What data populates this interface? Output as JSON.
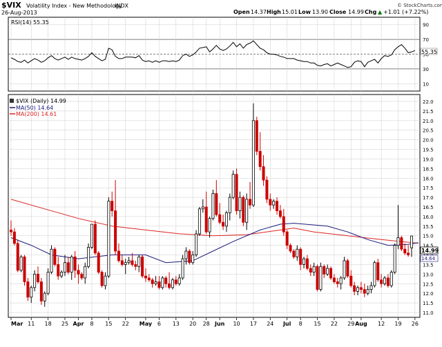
{
  "header": {
    "symbol": "$VIX",
    "name": "Volatility Index - New Methodology",
    "exchange": "INDX",
    "date": "26-Aug-2013",
    "open_label": "Open",
    "open": "14.37",
    "high_label": "High",
    "high": "15.01",
    "low_label": "Low",
    "low": "13.90",
    "close_label": "Close",
    "close": "14.99",
    "chg_label": "Chg",
    "chg": "+1.01 (+7.22%)",
    "watermark": "© StockCharts.com",
    "up_arrow": "▲"
  },
  "rsi_panel": {
    "label": "RSI(14) 55.35",
    "last_value_label": "55.35",
    "ticks": [
      10,
      30,
      50,
      70,
      90
    ],
    "ref_lines": [
      30,
      50,
      70
    ],
    "ylim": [
      0,
      100
    ]
  },
  "price_panel": {
    "legend_title": "$VIX (Daily) 14.99",
    "legend_ma50": "MA(50) 14.64",
    "legend_ma200": "MA(200) 14.61",
    "price_tag": "14.99",
    "ma_tag": "14.64"
  },
  "colors": {
    "up": "#000000",
    "down": "#cc0000",
    "ma50": "#1a1a7a",
    "ma200": "#dd2222",
    "grid": "#cccccc",
    "rsi_line": "#000000"
  },
  "chart_data": {
    "type": "candlestick",
    "title": "$VIX Volatility Index - New Methodology INDX",
    "ylim": [
      11.0,
      22.0
    ],
    "yticks": [
      11.0,
      11.5,
      12.0,
      12.5,
      13.0,
      13.5,
      14.0,
      14.5,
      15.0,
      15.5,
      16.0,
      16.5,
      17.0,
      17.5,
      18.0,
      18.5,
      19.0,
      19.5,
      20.0,
      20.5,
      21.0,
      21.5,
      22.0
    ],
    "xtick_labels": [
      {
        "i": 0,
        "label": "Mar"
      },
      {
        "i": 6,
        "label": "11"
      },
      {
        "i": 11,
        "label": "18"
      },
      {
        "i": 16,
        "label": "25"
      },
      {
        "i": 20,
        "label": "Apr"
      },
      {
        "i": 24,
        "label": "8"
      },
      {
        "i": 29,
        "label": "15"
      },
      {
        "i": 34,
        "label": "22"
      },
      {
        "i": 40,
        "label": "May"
      },
      {
        "i": 44,
        "label": "6"
      },
      {
        "i": 49,
        "label": "13"
      },
      {
        "i": 54,
        "label": "20"
      },
      {
        "i": 58,
        "label": "28"
      },
      {
        "i": 62,
        "label": "Jun"
      },
      {
        "i": 67,
        "label": "10"
      },
      {
        "i": 72,
        "label": "17"
      },
      {
        "i": 77,
        "label": "24"
      },
      {
        "i": 82,
        "label": "Jul"
      },
      {
        "i": 86,
        "label": "8"
      },
      {
        "i": 91,
        "label": "15"
      },
      {
        "i": 96,
        "label": "22"
      },
      {
        "i": 101,
        "label": "29"
      },
      {
        "i": 104,
        "label": "Aug"
      },
      {
        "i": 110,
        "label": "12"
      },
      {
        "i": 115,
        "label": "19"
      },
      {
        "i": 120,
        "label": "26"
      }
    ],
    "ohlc": [
      [
        15.3,
        15.8,
        15.0,
        15.2
      ],
      [
        15.2,
        15.4,
        14.5,
        14.6
      ],
      [
        14.6,
        14.8,
        13.1,
        13.2
      ],
      [
        13.2,
        14.0,
        13.1,
        13.9
      ],
      [
        13.9,
        14.0,
        12.4,
        12.6
      ],
      [
        12.6,
        12.8,
        11.6,
        11.8
      ],
      [
        11.8,
        12.4,
        11.5,
        12.3
      ],
      [
        12.3,
        13.2,
        12.1,
        13.0
      ],
      [
        13.0,
        13.4,
        12.5,
        12.6
      ],
      [
        12.6,
        12.8,
        11.4,
        11.6
      ],
      [
        11.6,
        12.1,
        11.3,
        12.0
      ],
      [
        12.0,
        13.3,
        11.9,
        13.1
      ],
      [
        13.1,
        14.5,
        13.0,
        14.3
      ],
      [
        14.3,
        14.4,
        13.4,
        13.5
      ],
      [
        13.5,
        13.9,
        12.7,
        12.9
      ],
      [
        12.9,
        13.2,
        12.8,
        13.1
      ],
      [
        13.1,
        14.0,
        12.9,
        13.6
      ],
      [
        13.6,
        13.9,
        13.0,
        13.1
      ],
      [
        13.1,
        14.0,
        12.7,
        13.9
      ],
      [
        13.9,
        14.2,
        12.8,
        13.2
      ],
      [
        13.2,
        13.5,
        12.5,
        13.0
      ],
      [
        13.0,
        13.1,
        12.7,
        12.8
      ],
      [
        12.8,
        13.6,
        12.5,
        13.4
      ],
      [
        13.4,
        14.6,
        13.3,
        14.4
      ],
      [
        14.4,
        15.6,
        14.3,
        15.6
      ],
      [
        15.6,
        15.8,
        14.0,
        14.1
      ],
      [
        14.1,
        14.2,
        13.0,
        13.1
      ],
      [
        13.1,
        13.2,
        12.3,
        12.4
      ],
      [
        12.4,
        13.1,
        12.2,
        12.9
      ],
      [
        12.9,
        17.0,
        12.8,
        16.8
      ],
      [
        16.8,
        17.3,
        16.0,
        16.3
      ],
      [
        16.3,
        17.9,
        14.0,
        14.2
      ],
      [
        14.2,
        14.6,
        13.6,
        13.7
      ],
      [
        13.7,
        14.0,
        13.4,
        13.5
      ],
      [
        13.5,
        13.8,
        13.0,
        13.6
      ],
      [
        13.6,
        13.9,
        13.5,
        13.7
      ],
      [
        13.7,
        14.1,
        13.4,
        13.5
      ],
      [
        13.5,
        13.7,
        13.2,
        13.4
      ],
      [
        13.4,
        14.0,
        13.1,
        13.9
      ],
      [
        13.9,
        14.0,
        12.8,
        12.9
      ],
      [
        12.9,
        13.3,
        12.6,
        12.8
      ],
      [
        12.8,
        13.0,
        12.6,
        12.7
      ],
      [
        12.7,
        12.8,
        12.3,
        12.5
      ],
      [
        12.5,
        12.9,
        12.4,
        12.6
      ],
      [
        12.6,
        12.9,
        12.2,
        12.3
      ],
      [
        12.3,
        12.9,
        12.2,
        12.8
      ],
      [
        12.8,
        12.9,
        12.3,
        12.5
      ],
      [
        12.5,
        13.1,
        12.2,
        12.3
      ],
      [
        12.3,
        12.8,
        12.2,
        12.7
      ],
      [
        12.7,
        12.9,
        12.4,
        12.5
      ],
      [
        12.5,
        13.0,
        12.4,
        12.8
      ],
      [
        12.8,
        14.0,
        12.7,
        13.8
      ],
      [
        13.8,
        14.4,
        13.5,
        14.2
      ],
      [
        14.2,
        14.3,
        13.5,
        13.6
      ],
      [
        13.6,
        14.2,
        13.5,
        14.0
      ],
      [
        14.0,
        15.3,
        13.9,
        15.1
      ],
      [
        15.1,
        16.5,
        15.0,
        16.4
      ],
      [
        16.4,
        16.9,
        16.2,
        16.5
      ],
      [
        16.5,
        17.3,
        15.1,
        15.2
      ],
      [
        15.2,
        16.0,
        14.9,
        15.9
      ],
      [
        15.9,
        17.4,
        15.8,
        17.2
      ],
      [
        17.2,
        17.9,
        16.0,
        16.1
      ],
      [
        16.1,
        16.7,
        15.6,
        15.7
      ],
      [
        15.7,
        16.1,
        15.3,
        15.5
      ],
      [
        15.5,
        16.3,
        15.2,
        16.2
      ],
      [
        16.2,
        17.2,
        15.8,
        17.0
      ],
      [
        17.0,
        18.4,
        16.9,
        18.2
      ],
      [
        18.2,
        18.5,
        16.1,
        16.3
      ],
      [
        16.3,
        17.3,
        15.9,
        17.0
      ],
      [
        17.0,
        17.1,
        15.5,
        15.7
      ],
      [
        15.7,
        17.2,
        15.3,
        16.9
      ],
      [
        16.9,
        17.8,
        16.4,
        16.6
      ],
      [
        16.6,
        21.9,
        16.5,
        21.0
      ],
      [
        21.0,
        21.2,
        19.2,
        19.4
      ],
      [
        19.4,
        20.4,
        18.4,
        18.6
      ],
      [
        18.6,
        19.2,
        17.6,
        17.9
      ],
      [
        17.9,
        18.1,
        16.7,
        16.9
      ],
      [
        16.9,
        17.2,
        16.3,
        16.6
      ],
      [
        16.6,
        16.9,
        16.4,
        16.8
      ],
      [
        16.8,
        17.0,
        16.1,
        16.3
      ],
      [
        16.3,
        16.6,
        15.9,
        16.0
      ],
      [
        16.0,
        16.4,
        15.0,
        15.2
      ],
      [
        15.2,
        15.3,
        14.3,
        14.5
      ],
      [
        14.5,
        14.6,
        14.1,
        14.2
      ],
      [
        14.2,
        14.3,
        13.8,
        13.9
      ],
      [
        13.9,
        14.5,
        13.7,
        14.3
      ],
      [
        14.3,
        14.4,
        13.2,
        13.5
      ],
      [
        13.5,
        13.9,
        13.3,
        13.8
      ],
      [
        13.8,
        14.0,
        13.2,
        13.3
      ],
      [
        13.3,
        13.5,
        12.9,
        13.1
      ],
      [
        13.1,
        13.6,
        12.9,
        13.4
      ],
      [
        13.4,
        13.5,
        12.1,
        12.2
      ],
      [
        12.2,
        13.6,
        12.1,
        13.4
      ],
      [
        13.4,
        13.5,
        12.8,
        13.0
      ],
      [
        13.0,
        13.5,
        12.9,
        13.3
      ],
      [
        13.3,
        13.4,
        12.7,
        12.8
      ],
      [
        12.8,
        13.0,
        12.5,
        12.6
      ],
      [
        12.6,
        12.8,
        12.3,
        12.5
      ],
      [
        12.5,
        12.9,
        12.2,
        12.8
      ],
      [
        12.8,
        13.9,
        12.7,
        13.7
      ],
      [
        13.7,
        13.8,
        12.8,
        12.9
      ],
      [
        12.9,
        13.2,
        12.3,
        12.4
      ],
      [
        12.4,
        12.6,
        11.9,
        12.1
      ],
      [
        12.1,
        12.4,
        11.9,
        12.3
      ],
      [
        12.3,
        12.6,
        12.0,
        12.2
      ],
      [
        12.2,
        12.5,
        11.8,
        12.0
      ],
      [
        12.0,
        12.4,
        11.9,
        12.2
      ],
      [
        12.2,
        12.6,
        12.0,
        12.4
      ],
      [
        12.4,
        13.7,
        12.3,
        13.6
      ],
      [
        13.6,
        13.8,
        12.6,
        12.7
      ],
      [
        12.7,
        13.0,
        12.3,
        12.5
      ],
      [
        12.5,
        12.9,
        12.4,
        12.8
      ],
      [
        12.8,
        13.0,
        12.3,
        12.4
      ],
      [
        12.4,
        13.2,
        12.3,
        13.1
      ],
      [
        13.1,
        14.6,
        13.0,
        14.5
      ],
      [
        14.5,
        16.6,
        14.3,
        14.9
      ],
      [
        14.9,
        15.0,
        14.2,
        14.3
      ],
      [
        14.3,
        14.6,
        14.0,
        14.1
      ],
      [
        14.1,
        14.5,
        13.9,
        14.0
      ],
      [
        14.37,
        15.01,
        13.9,
        14.99
      ]
    ],
    "ma50": [
      [
        0,
        14.9
      ],
      [
        6,
        14.5
      ],
      [
        12,
        14.0
      ],
      [
        20,
        13.8
      ],
      [
        30,
        14.0
      ],
      [
        40,
        14.0
      ],
      [
        46,
        13.6
      ],
      [
        54,
        13.7
      ],
      [
        60,
        14.2
      ],
      [
        66,
        14.7
      ],
      [
        74,
        15.3
      ],
      [
        80,
        15.6
      ],
      [
        84,
        15.65
      ],
      [
        94,
        15.5
      ],
      [
        100,
        15.2
      ],
      [
        106,
        14.8
      ],
      [
        112,
        14.5
      ],
      [
        118,
        14.55
      ],
      [
        121,
        14.64
      ]
    ],
    "ma200": [
      [
        0,
        16.9
      ],
      [
        10,
        16.4
      ],
      [
        20,
        15.9
      ],
      [
        30,
        15.5
      ],
      [
        40,
        15.3
      ],
      [
        50,
        15.1
      ],
      [
        60,
        15.0
      ],
      [
        70,
        15.05
      ],
      [
        80,
        15.3
      ],
      [
        84,
        15.4
      ],
      [
        90,
        15.2
      ],
      [
        100,
        15.0
      ],
      [
        110,
        14.8
      ],
      [
        121,
        14.61
      ]
    ],
    "rsi": [
      45,
      43,
      40,
      39,
      42,
      38,
      41,
      44,
      42,
      39,
      41,
      45,
      48,
      44,
      42,
      44,
      46,
      43,
      46,
      44,
      43,
      42,
      44,
      47,
      52,
      47,
      44,
      41,
      43,
      58,
      56,
      47,
      44,
      44,
      46,
      46,
      46,
      45,
      48,
      42,
      40,
      41,
      39,
      41,
      39,
      41,
      41,
      40,
      41,
      40,
      42,
      48,
      50,
      47,
      49,
      53,
      58,
      59,
      60,
      53,
      57,
      62,
      57,
      55,
      57,
      61,
      66,
      60,
      64,
      58,
      63,
      65,
      68,
      63,
      58,
      56,
      52,
      50,
      50,
      49,
      47,
      46,
      44,
      44,
      44,
      42,
      41,
      40,
      40,
      38,
      38,
      35,
      34,
      36,
      37,
      34,
      36,
      38,
      36,
      34,
      32,
      33,
      39,
      41,
      40,
      33,
      39,
      41,
      43,
      38,
      44,
      48,
      47,
      49,
      56,
      60,
      63,
      58,
      52,
      53,
      55
    ]
  }
}
